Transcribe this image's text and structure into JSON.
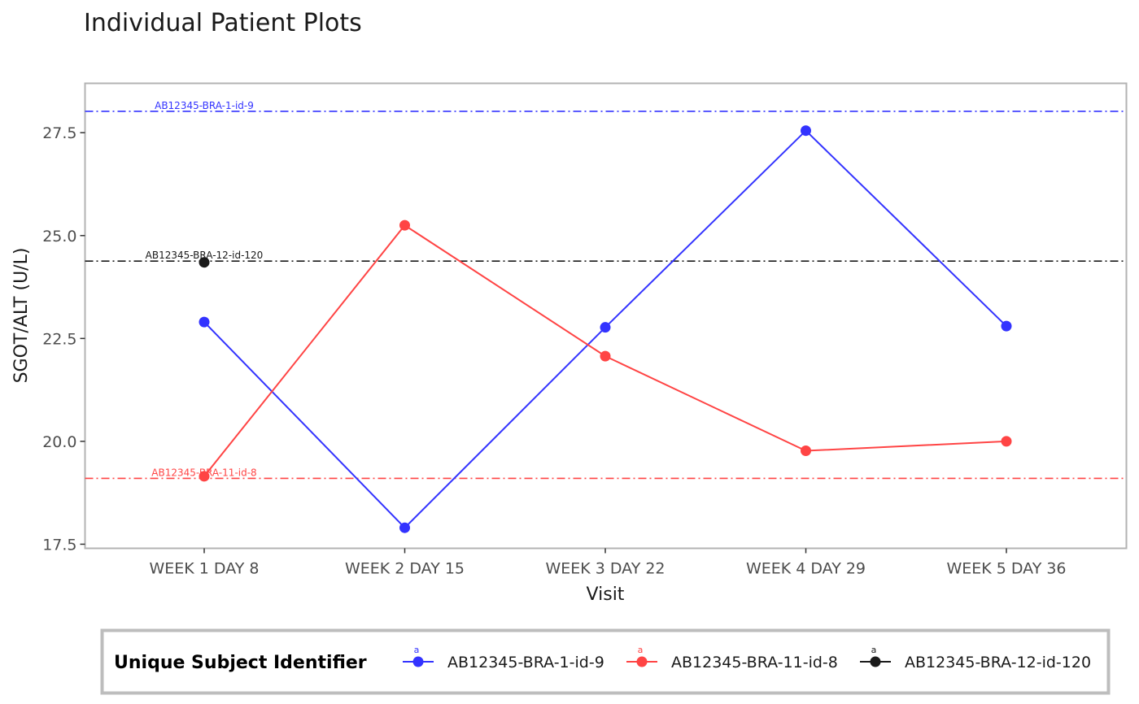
{
  "chart_data": {
    "type": "line",
    "title": "Individual Patient Plots",
    "xlabel": "Visit",
    "ylabel": "SGOT/ALT (U/L)",
    "categories": [
      "WEEK 1 DAY 8",
      "WEEK 2 DAY 15",
      "WEEK 3 DAY 22",
      "WEEK 4 DAY 29",
      "WEEK 5 DAY 36"
    ],
    "ylim": [
      17.4,
      28.7
    ],
    "yticks": [
      17.5,
      20.0,
      22.5,
      25.0,
      27.5
    ],
    "ytick_labels": [
      "17.5",
      "20.0",
      "22.5",
      "25.0",
      "27.5"
    ],
    "grid": false,
    "legend_position": "bottom",
    "legend_title": "Unique Subject Identifier",
    "legend_marker_text": "a",
    "series": [
      {
        "name": "AB12345-BRA-1-id-9",
        "color": "#3333ff",
        "values": [
          22.9,
          17.9,
          22.77,
          27.55,
          22.8
        ]
      },
      {
        "name": "AB12345-BRA-11-id-8",
        "color": "#ff4444",
        "values": [
          19.15,
          25.25,
          22.07,
          19.77,
          20.0
        ]
      },
      {
        "name": "AB12345-BRA-12-id-120",
        "color": "#1a1a1a",
        "values": [
          24.35,
          null,
          null,
          null,
          null
        ]
      }
    ],
    "reference_lines": [
      {
        "label": "AB12345-BRA-1-id-9",
        "value": 28.02,
        "color": "#3333ff"
      },
      {
        "label": "AB12345-BRA-12-id-120",
        "value": 24.38,
        "color": "#1a1a1a"
      },
      {
        "label": "AB12345-BRA-11-id-8",
        "value": 19.1,
        "color": "#ff4444"
      }
    ]
  }
}
